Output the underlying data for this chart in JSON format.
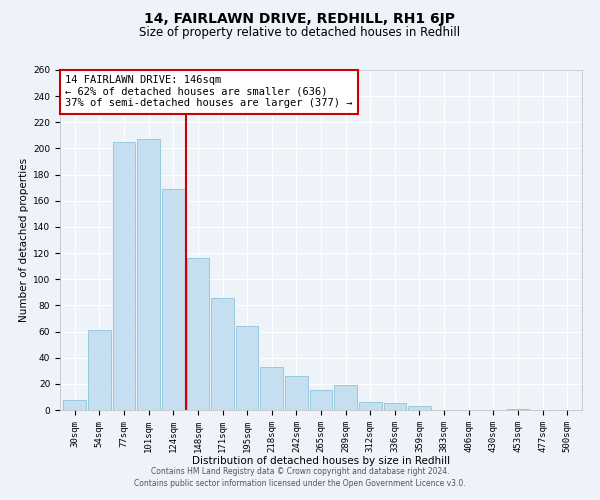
{
  "title": "14, FAIRLAWN DRIVE, REDHILL, RH1 6JP",
  "subtitle": "Size of property relative to detached houses in Redhill",
  "xlabel": "Distribution of detached houses by size in Redhill",
  "ylabel": "Number of detached properties",
  "categories": [
    "30sqm",
    "54sqm",
    "77sqm",
    "101sqm",
    "124sqm",
    "148sqm",
    "171sqm",
    "195sqm",
    "218sqm",
    "242sqm",
    "265sqm",
    "289sqm",
    "312sqm",
    "336sqm",
    "359sqm",
    "383sqm",
    "406sqm",
    "430sqm",
    "453sqm",
    "477sqm",
    "500sqm"
  ],
  "values": [
    8,
    61,
    205,
    207,
    169,
    116,
    86,
    64,
    33,
    26,
    15,
    19,
    6,
    5,
    3,
    0,
    0,
    0,
    1,
    0,
    0
  ],
  "bar_color": "#c5dff0",
  "bar_edge_color": "#7fbcd4",
  "vline_color": "#cc0000",
  "annotation_line1": "14 FAIRLAWN DRIVE: 146sqm",
  "annotation_line2": "← 62% of detached houses are smaller (636)",
  "annotation_line3": "37% of semi-detached houses are larger (377) →",
  "annotation_box_color": "#ffffff",
  "annotation_box_edge": "#cc0000",
  "ylim": [
    0,
    260
  ],
  "yticks": [
    0,
    20,
    40,
    60,
    80,
    100,
    120,
    140,
    160,
    180,
    200,
    220,
    240,
    260
  ],
  "footer_text": "Contains HM Land Registry data © Crown copyright and database right 2024.\nContains public sector information licensed under the Open Government Licence v3.0.",
  "bg_color": "#eef2f9",
  "grid_color": "#ffffff",
  "title_fontsize": 10,
  "subtitle_fontsize": 8.5,
  "axis_label_fontsize": 7.5,
  "tick_fontsize": 6.5,
  "annotation_fontsize": 7.5,
  "footer_fontsize": 5.5
}
